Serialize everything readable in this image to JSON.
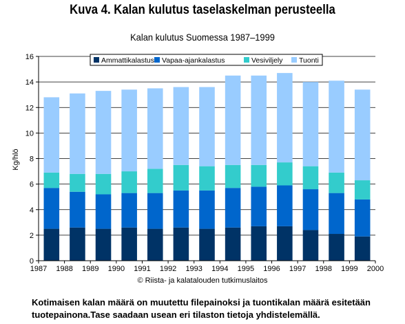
{
  "heading": "Kuva 4. Kalan kulutus taselaskelman perusteella",
  "source": "© Riista- ja kalatalouden tutkimuslaitos",
  "note_lines": [
    "Kotimaisen kalan määrä on muutettu filepainoksi ja tuontikalan määrä esitetään",
    "tuotepainona.Tase saadaan usean eri tilaston tietoja yhdistelemällä."
  ],
  "chart_data": {
    "type": "bar",
    "stacked": true,
    "title": "Kalan kulutus Suomessa 1987–1999",
    "xlabel": "",
    "ylabel": "Kg/hlö",
    "ylim": [
      0,
      16
    ],
    "yticks": [
      0,
      2,
      4,
      6,
      8,
      10,
      12,
      14,
      16
    ],
    "xticks": [
      "1987",
      "1988",
      "1989",
      "1990",
      "1991",
      "1992",
      "1993",
      "1994",
      "1995",
      "1996",
      "1997",
      "1998",
      "1999",
      "2000"
    ],
    "grid": true,
    "legend_position": "top",
    "categories": [
      "1987",
      "1988",
      "1989",
      "1990",
      "1991",
      "1992",
      "1993",
      "1994",
      "1995",
      "1996",
      "1997",
      "1998",
      "1999"
    ],
    "series": [
      {
        "name": "Ammattikalastus",
        "color": "#003366",
        "values": [
          2.5,
          2.6,
          2.5,
          2.6,
          2.5,
          2.6,
          2.5,
          2.6,
          2.7,
          2.7,
          2.4,
          2.1,
          1.9
        ]
      },
      {
        "name": "Vapaa-ajankalastus",
        "color": "#0066cc",
        "values": [
          3.2,
          2.8,
          2.7,
          2.7,
          2.8,
          2.9,
          3.0,
          3.1,
          3.1,
          3.2,
          3.2,
          3.2,
          2.9
        ]
      },
      {
        "name": "Vesiviljely",
        "color": "#33cccc",
        "values": [
          1.2,
          1.4,
          1.6,
          1.7,
          1.9,
          2.0,
          1.9,
          1.8,
          1.7,
          1.8,
          1.8,
          1.6,
          1.5
        ]
      },
      {
        "name": "Tuonti",
        "color": "#99ccff",
        "values": [
          5.9,
          6.3,
          6.5,
          6.4,
          6.3,
          6.1,
          6.2,
          7.0,
          7.0,
          7.0,
          6.6,
          7.2,
          7.1
        ]
      }
    ]
  }
}
